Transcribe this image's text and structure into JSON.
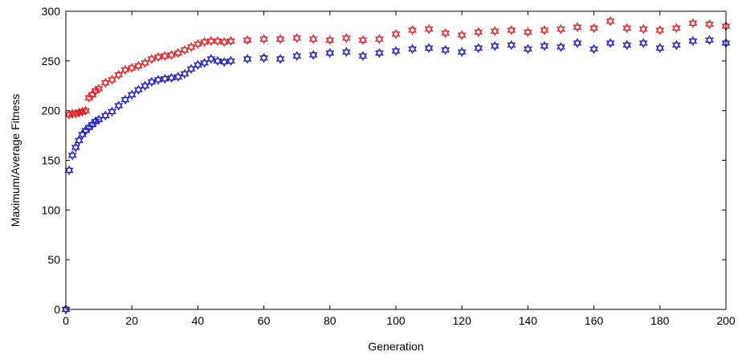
{
  "chart_data": {
    "type": "scatter",
    "title": "",
    "xlabel": "Generation",
    "ylabel": "Maximum/Average Fitness",
    "xlim": [
      0,
      200
    ],
    "ylim": [
      0,
      300
    ],
    "xticks": [
      0,
      20,
      40,
      60,
      80,
      100,
      120,
      140,
      160,
      180,
      200
    ],
    "yticks": [
      0,
      50,
      100,
      150,
      200,
      250,
      300
    ],
    "xtick_labels": [
      "0",
      "20",
      "40",
      "60",
      "80",
      "100",
      "120",
      "140",
      "160",
      "180",
      "200"
    ],
    "ytick_labels": [
      "0",
      "50",
      "100",
      "150",
      "200",
      "250",
      "300"
    ],
    "grid": false,
    "legend": "none",
    "marker": "hexagram",
    "series": [
      {
        "color": "#e0161b",
        "x": [
          0,
          1,
          2,
          3,
          4,
          5,
          6,
          7,
          8,
          9,
          10,
          12,
          14,
          16,
          18,
          20,
          22,
          24,
          26,
          28,
          30,
          32,
          34,
          36,
          38,
          40,
          42,
          44,
          46,
          48,
          50,
          55,
          60,
          65,
          70,
          75,
          80,
          85,
          90,
          95,
          100,
          105,
          110,
          115,
          120,
          125,
          130,
          135,
          140,
          145,
          150,
          155,
          160,
          165,
          170,
          175,
          180,
          185,
          190,
          195,
          200
        ],
        "values": [
          0,
          196,
          197,
          197,
          198,
          199,
          200,
          213,
          216,
          220,
          222,
          228,
          231,
          236,
          241,
          243,
          245,
          248,
          252,
          254,
          255,
          256,
          258,
          261,
          264,
          267,
          269,
          270,
          270,
          269,
          270,
          271,
          272,
          272,
          273,
          272,
          271,
          273,
          271,
          272,
          277,
          281,
          282,
          278,
          276,
          279,
          280,
          281,
          279,
          281,
          282,
          284,
          283,
          290,
          283,
          282,
          281,
          283,
          288,
          287,
          285
        ]
      },
      {
        "color": "#1010c0",
        "x": [
          0,
          1,
          2,
          3,
          4,
          5,
          6,
          7,
          8,
          9,
          10,
          12,
          14,
          16,
          18,
          20,
          22,
          24,
          26,
          28,
          30,
          32,
          34,
          36,
          38,
          40,
          42,
          44,
          46,
          48,
          50,
          55,
          60,
          65,
          70,
          75,
          80,
          85,
          90,
          95,
          100,
          105,
          110,
          115,
          120,
          125,
          130,
          135,
          140,
          145,
          150,
          155,
          160,
          165,
          170,
          175,
          180,
          185,
          190,
          195,
          200
        ],
        "values": [
          0,
          140,
          155,
          163,
          170,
          176,
          180,
          183,
          186,
          189,
          191,
          195,
          199,
          205,
          211,
          216,
          221,
          225,
          229,
          231,
          232,
          233,
          234,
          237,
          242,
          246,
          248,
          252,
          250,
          249,
          250,
          252,
          253,
          252,
          255,
          256,
          258,
          259,
          255,
          258,
          260,
          262,
          263,
          261,
          259,
          263,
          265,
          266,
          262,
          265,
          264,
          268,
          262,
          268,
          266,
          268,
          263,
          266,
          270,
          271,
          268
        ]
      }
    ]
  }
}
